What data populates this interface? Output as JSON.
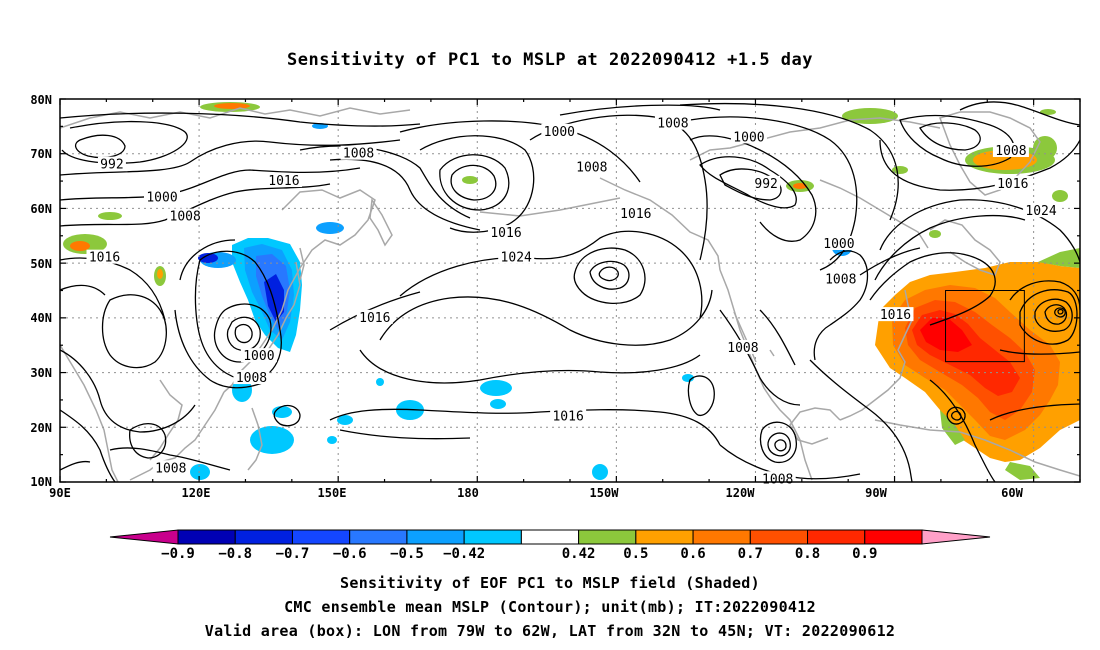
{
  "title": "Sensitivity of PC1 to MSLP at 2022090412 +1.5 day",
  "lat_labels": [
    "80N",
    "70N",
    "60N",
    "50N",
    "40N",
    "30N",
    "20N",
    "10N"
  ],
  "lon_labels": [
    "90E",
    "120E",
    "150E",
    "180",
    "150W",
    "120W",
    "90W",
    "60W"
  ],
  "contour_labels": [
    {
      "text": "1000",
      "lon": -162.3,
      "lat": 74.0
    },
    {
      "text": "1008",
      "lon": -137.8,
      "lat": 75.5
    },
    {
      "text": "1000",
      "lon": -121.4,
      "lat": 73.0
    },
    {
      "text": "1008",
      "lon": -64.9,
      "lat": 70.5
    },
    {
      "text": "992",
      "lon": 101.2,
      "lat": 68.0
    },
    {
      "text": "1008",
      "lon": 154.4,
      "lat": 70.0
    },
    {
      "text": "1008",
      "lon": -155.3,
      "lat": 67.5
    },
    {
      "text": "992",
      "lon": -117.7,
      "lat": 64.5
    },
    {
      "text": "1016",
      "lon": 138.3,
      "lat": 65.0
    },
    {
      "text": "1016",
      "lon": -64.5,
      "lat": 64.5
    },
    {
      "text": "1000",
      "lon": 112.0,
      "lat": 62.0
    },
    {
      "text": "1008",
      "lon": 117.0,
      "lat": 58.5
    },
    {
      "text": "1016",
      "lon": -145.8,
      "lat": 59.0
    },
    {
      "text": "1024",
      "lon": -58.4,
      "lat": 59.5
    },
    {
      "text": "1016",
      "lon": 186.2,
      "lat": 55.5
    },
    {
      "text": "1000",
      "lon": -102.0,
      "lat": 53.5
    },
    {
      "text": "1016",
      "lon": 99.6,
      "lat": 51.0
    },
    {
      "text": "1024",
      "lon": -171.6,
      "lat": 51.0
    },
    {
      "text": "1008",
      "lon": -101.6,
      "lat": 47.0
    },
    {
      "text": "1016",
      "lon": 157.9,
      "lat": 40.0
    },
    {
      "text": "1016",
      "lon": -89.8,
      "lat": 40.5
    },
    {
      "text": "1008",
      "lon": -122.7,
      "lat": 34.5
    },
    {
      "text": "1000",
      "lon": 132.9,
      "lat": 33.0
    },
    {
      "text": "1008",
      "lon": 131.3,
      "lat": 29.0
    },
    {
      "text": "1016",
      "lon": -160.4,
      "lat": 22.0
    },
    {
      "text": "1008",
      "lon": 113.9,
      "lat": 12.5
    },
    {
      "text": "1008",
      "lon": -115.2,
      "lat": 10.5
    }
  ],
  "colorbar": {
    "colors": [
      "#c8008c",
      "#0000b4",
      "#0020e0",
      "#1446ff",
      "#2878ff",
      "#0ca0ff",
      "#00c8ff",
      "#ffffff",
      "#8cc83c",
      "#ffa000",
      "#ff7800",
      "#ff5000",
      "#ff2800",
      "#ff0000",
      "#ffa0c8"
    ],
    "labels": [
      "−0.9",
      "−0.8",
      "−0.7",
      "−0.6",
      "−0.5",
      "−0.42",
      "0.42",
      "0.5",
      "0.6",
      "0.7",
      "0.8",
      "0.9"
    ]
  },
  "valid_box": {
    "lon_w": -79,
    "lon_e": -62,
    "lat_s": 32,
    "lat_n": 45
  },
  "captions": {
    "line1": "Sensitivity of EOF PC1 to MSLP field (Shaded)",
    "line2": "CMC ensemble mean MSLP (Contour); unit(mb); IT:2022090412",
    "line3": "Valid area (box): LON from 79W to 62W, LAT from 32N to 45N; VT: 2022090612"
  }
}
